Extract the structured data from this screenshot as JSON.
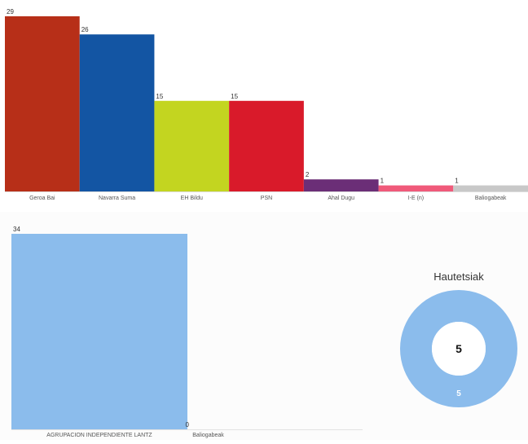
{
  "chart_data": [
    {
      "type": "bar",
      "categories": [
        "Geroa Bai",
        "Navarra Suma",
        "EH Bildu",
        "PSN",
        "Ahal Dugu",
        "I-E (n)",
        "Baliogabeak"
      ],
      "values": [
        29,
        26,
        15,
        15,
        2,
        1,
        1
      ],
      "colors": [
        "#b72f18",
        "#1355a3",
        "#c3d520",
        "#d91a2a",
        "#6b2e77",
        "#f05a7a",
        "#c8c8c8"
      ],
      "ylim": [
        0,
        29
      ],
      "grid": false,
      "legend": "none"
    },
    {
      "type": "bar",
      "categories": [
        "AGRUPACION INDEPENDIENTE LANTZ",
        "Baliogabeak"
      ],
      "values": [
        34,
        0
      ],
      "colors": [
        "#8bbcec",
        "#8bbcec"
      ],
      "ylim": [
        0,
        34
      ],
      "grid": false,
      "legend": "none"
    },
    {
      "type": "pie",
      "title": "Hautetsiak",
      "center_label": "5",
      "categories": [
        ""
      ],
      "values": [
        5
      ],
      "colors": [
        "#8bbcec"
      ]
    }
  ]
}
